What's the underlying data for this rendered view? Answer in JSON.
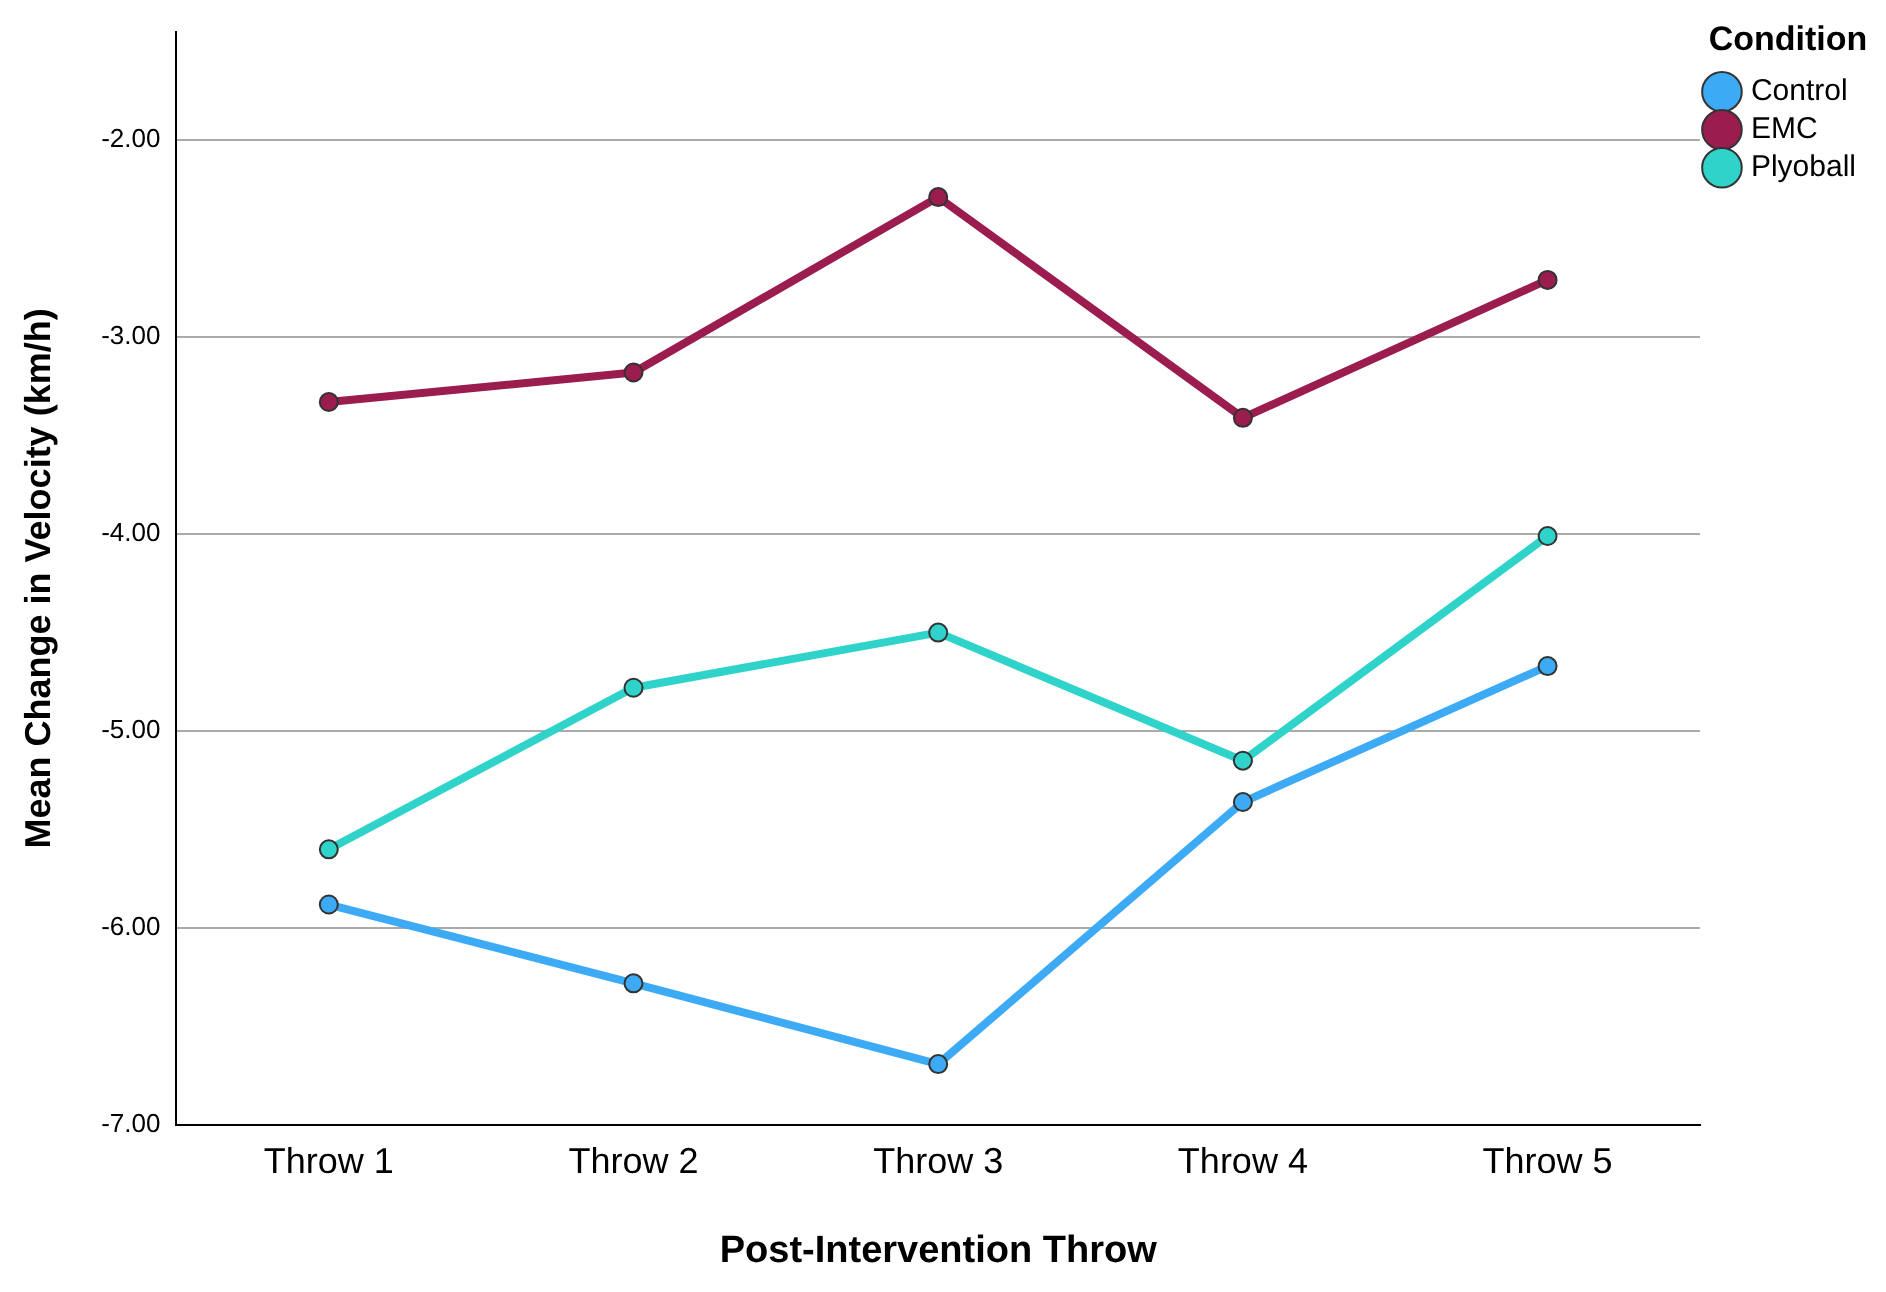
{
  "chart_data": {
    "type": "line",
    "xlabel": "Post-Intervention Throw",
    "ylabel": "Mean Change in Velocity (km/h)",
    "legend_title": "Condition",
    "legend": "top right",
    "grid": "y",
    "marker": "circle",
    "line_style": "solid",
    "categories": [
      "Throw 1",
      "Throw 2",
      "Throw 3",
      "Throw 4",
      "Throw 5"
    ],
    "ylim": [
      -7,
      -1.45
    ],
    "yticks": [
      {
        "value": -7,
        "label": "-7.00"
      },
      {
        "value": -6,
        "label": "-6.00"
      },
      {
        "value": -5,
        "label": "-5.00"
      },
      {
        "value": -4,
        "label": "-4.00"
      },
      {
        "value": -3,
        "label": "-3.00"
      },
      {
        "value": -2,
        "label": "-2.00"
      }
    ],
    "series": [
      {
        "name": "Control",
        "color": "#3daaf5",
        "values": [
          -5.88,
          -6.28,
          -6.69,
          -5.36,
          -4.67
        ]
      },
      {
        "name": "EMC",
        "color": "#9b1c4e",
        "values": [
          -3.33,
          -3.18,
          -2.29,
          -3.41,
          -2.71
        ]
      },
      {
        "name": "Plyoball",
        "color": "#2fd3c9",
        "values": [
          -5.6,
          -4.78,
          -4.5,
          -5.15,
          -4.01
        ]
      }
    ]
  }
}
